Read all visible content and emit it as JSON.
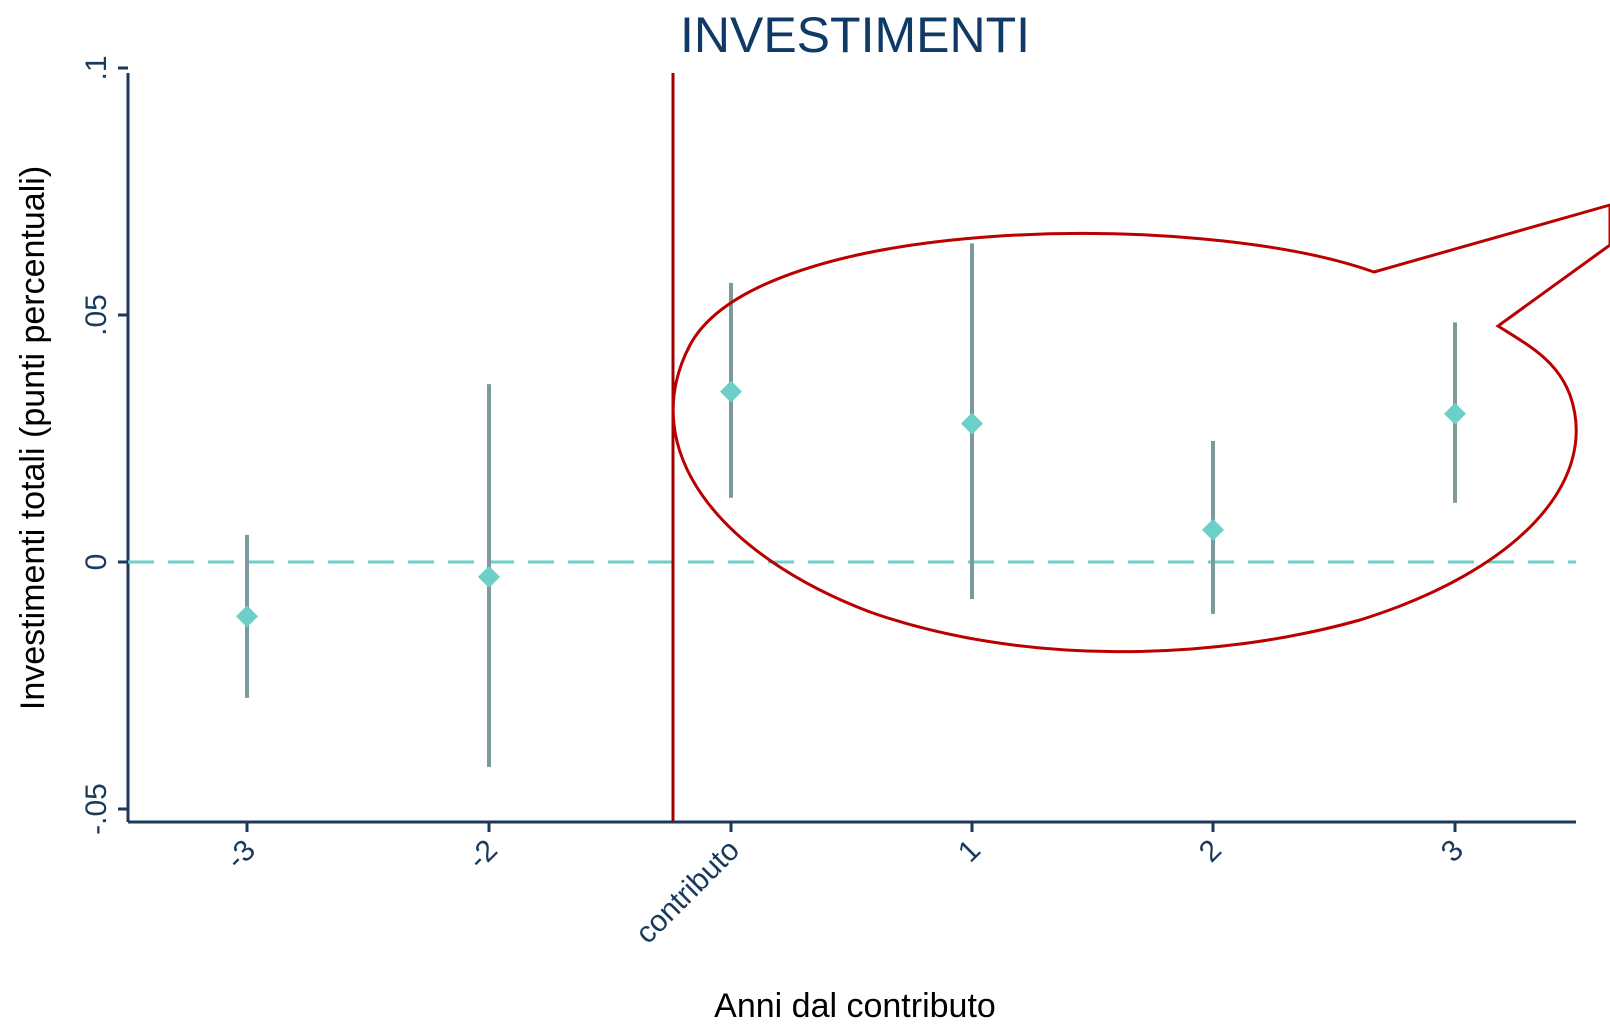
{
  "chart_data": {
    "type": "scatter",
    "title": "INVESTIMENTI",
    "xlabel": "Anni dal contributo",
    "ylabel": "Investimenti totali (punti percentuali)",
    "x_tick_labels": [
      "-3",
      "-2",
      "contributo",
      "1",
      "2",
      "3"
    ],
    "y_ticks": [
      -0.05,
      0,
      0.05,
      0.1
    ],
    "y_tick_labels": [
      "-.05",
      "0",
      ".05",
      ".1"
    ],
    "ylim": [
      -0.05,
      0.1
    ],
    "grid": false,
    "legend": "none",
    "reference_lines": {
      "horizontal_y": 0,
      "vertical_between": [
        "-2",
        "contributo"
      ]
    },
    "series": [
      {
        "points": [
          {
            "x": "-3",
            "estimate": -0.011,
            "ci_low": -0.0275,
            "ci_high": 0.0055
          },
          {
            "x": "-2",
            "estimate": -0.003,
            "ci_low": -0.0415,
            "ci_high": 0.036
          },
          {
            "x": "contributo",
            "estimate": 0.0345,
            "ci_low": 0.013,
            "ci_high": 0.0565
          },
          {
            "x": "1",
            "estimate": 0.028,
            "ci_low": -0.0075,
            "ci_high": 0.0645
          },
          {
            "x": "2",
            "estimate": 0.0065,
            "ci_low": -0.0105,
            "ci_high": 0.0245
          },
          {
            "x": "3",
            "estimate": 0.03,
            "ci_low": 0.012,
            "ci_high": 0.0485
          }
        ]
      }
    ],
    "colors": {
      "title": "#0f3a66",
      "axis": "#1a3a5c",
      "point": "#6ccfc8",
      "ci": "#7a9a9c",
      "zero_line": "#6ccfc8",
      "vertical_line": "#a00000",
      "callout": "#bb0000"
    }
  }
}
